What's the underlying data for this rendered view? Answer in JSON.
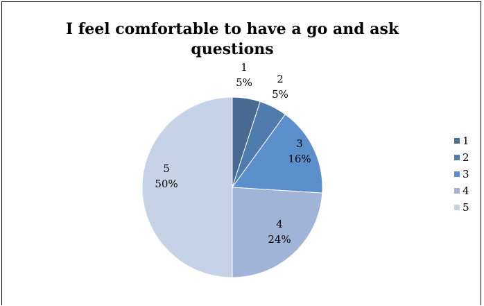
{
  "chart_data": {
    "type": "pie",
    "title": "I feel comfortable to have a go and ask questions",
    "categories": [
      "1",
      "2",
      "3",
      "4",
      "5"
    ],
    "values": [
      5,
      5,
      16,
      24,
      50
    ],
    "data_labels": [
      {
        "name": "1",
        "pct": "5%"
      },
      {
        "name": "2",
        "pct": "5%"
      },
      {
        "name": "3",
        "pct": "16%"
      },
      {
        "name": "4",
        "pct": "24%"
      },
      {
        "name": "5",
        "pct": "50%"
      }
    ],
    "colors": [
      "#4a6b91",
      "#4f7cac",
      "#5a8fcb",
      "#a1b4d8",
      "#c6d2e5"
    ],
    "legend": {
      "position": "right",
      "entries": [
        "1",
        "2",
        "3",
        "4",
        "5"
      ]
    }
  }
}
